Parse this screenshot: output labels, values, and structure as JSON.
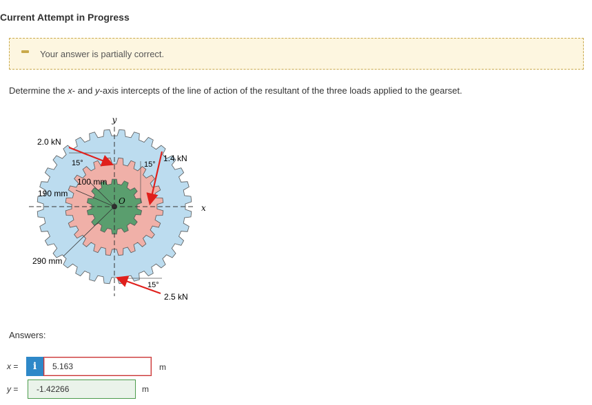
{
  "header": {
    "title": "Current Attempt in Progress"
  },
  "banner": {
    "message": "Your answer is partially correct."
  },
  "question": {
    "part1": "Determine the ",
    "x_var": "x",
    "part2": "- and ",
    "y_var": "y",
    "part3": "-axis intercepts of the line of action of the resultant of the three loads applied to the gearset."
  },
  "figure": {
    "axis_y": "y",
    "axis_x": "x",
    "origin": "O",
    "load_top": "2.0 kN",
    "load_right": "1.4 kN",
    "load_bottom": "2.5 kN",
    "angle_top": "15°",
    "angle_right": "15°",
    "angle_bottom": "15°",
    "r_inner": "100 mm",
    "r_middle": "190 mm",
    "r_outer": "290 mm"
  },
  "answers": {
    "label": "Answers:",
    "x": {
      "var": "x",
      "eq": " =",
      "value": "5.163",
      "unit": "m",
      "info": "i"
    },
    "y": {
      "var": "y",
      "eq": " =",
      "value": "-1.42266",
      "unit": "m"
    }
  },
  "colors": {
    "outer_gear": "#bcdcef",
    "middle_gear": "#f0b0a8",
    "inner_gear": "#5a9e6e",
    "arrow": "#e0201c",
    "banner_bg": "#fdf6e0",
    "info_button": "#2e88c8"
  }
}
